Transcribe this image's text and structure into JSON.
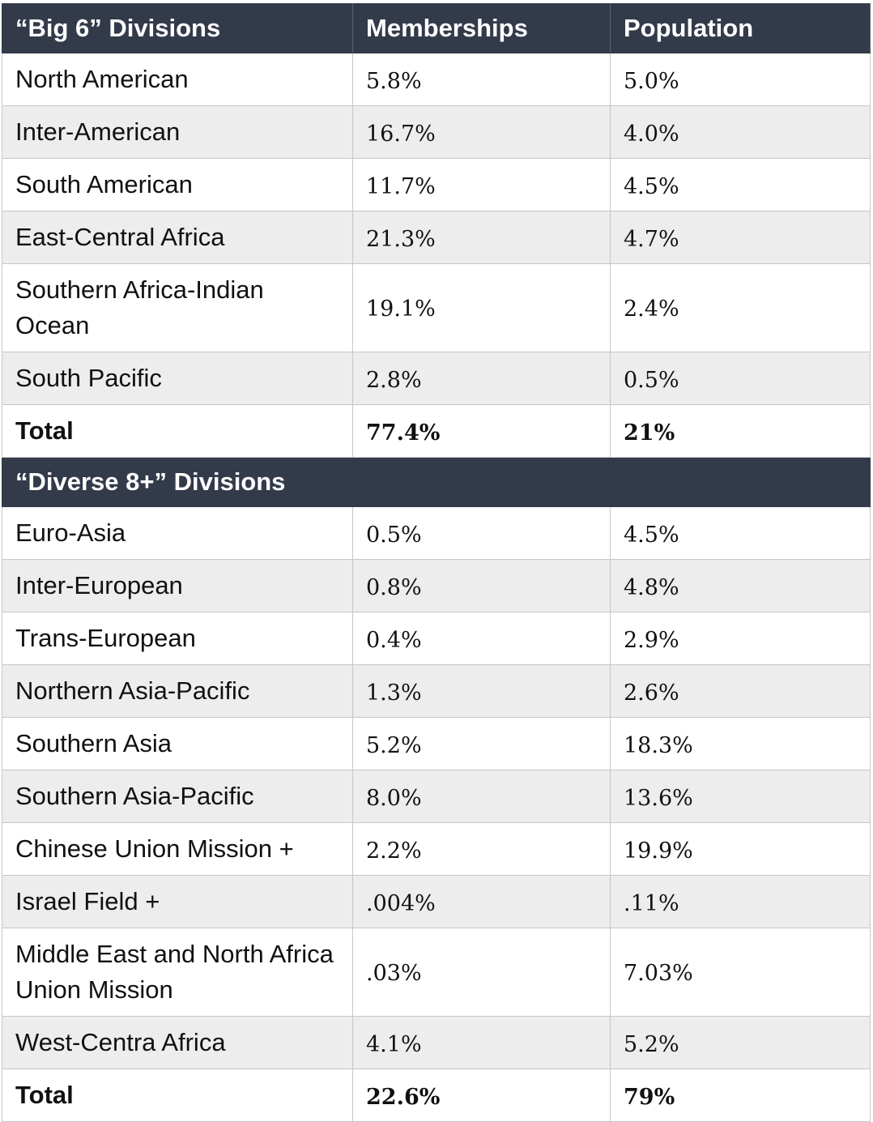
{
  "header": {
    "col1": "“Big 6” Divisions",
    "col2": "Memberships",
    "col3": "Population"
  },
  "big6": {
    "rows": [
      {
        "name": "North American",
        "memberships": "5.8%",
        "population": "5.0%"
      },
      {
        "name": "Inter-American",
        "memberships": "16.7%",
        "population": "4.0%"
      },
      {
        "name": "South American",
        "memberships": "11.7%",
        "population": "4.5%"
      },
      {
        "name": "East-Central Africa",
        "memberships": "21.3%",
        "population": "4.7%"
      },
      {
        "name": "Southern Africa-Indian Ocean",
        "memberships": "19.1%",
        "population": "2.4%"
      },
      {
        "name": "South Pacific",
        "memberships": "2.8%",
        "population": "0.5%"
      }
    ],
    "total": {
      "name": "Total",
      "memberships": "77.4%",
      "population": "21%"
    }
  },
  "diverse": {
    "heading": "“Diverse 8+” Divisions",
    "rows": [
      {
        "name": "Euro-Asia",
        "memberships": "0.5%",
        "population": "4.5%"
      },
      {
        "name": "Inter-European",
        "memberships": "0.8%",
        "population": "4.8%"
      },
      {
        "name": "Trans-European",
        "memberships": "0.4%",
        "population": "2.9%"
      },
      {
        "name": "Northern Asia-Pacific",
        "memberships": "1.3%",
        "population": "2.6%"
      },
      {
        "name": "Southern Asia",
        "memberships": "5.2%",
        "population": "18.3%"
      },
      {
        "name": "Southern Asia-Pacific",
        "memberships": "8.0%",
        "population": "13.6%"
      },
      {
        "name": "Chinese Union Mission +",
        "memberships": "2.2%",
        "population": "19.9%"
      },
      {
        "name": "Israel Field +",
        "memberships": ".004%",
        "population": ".11%"
      },
      {
        "name": "Middle East and North Africa Union Mission",
        "memberships": ".03%",
        "population": "7.03%"
      },
      {
        "name": "West-Centra Africa",
        "memberships": "4.1%",
        "population": "5.2%"
      }
    ],
    "total": {
      "name": "Total",
      "memberships": "22.6%",
      "population": "79%"
    }
  }
}
